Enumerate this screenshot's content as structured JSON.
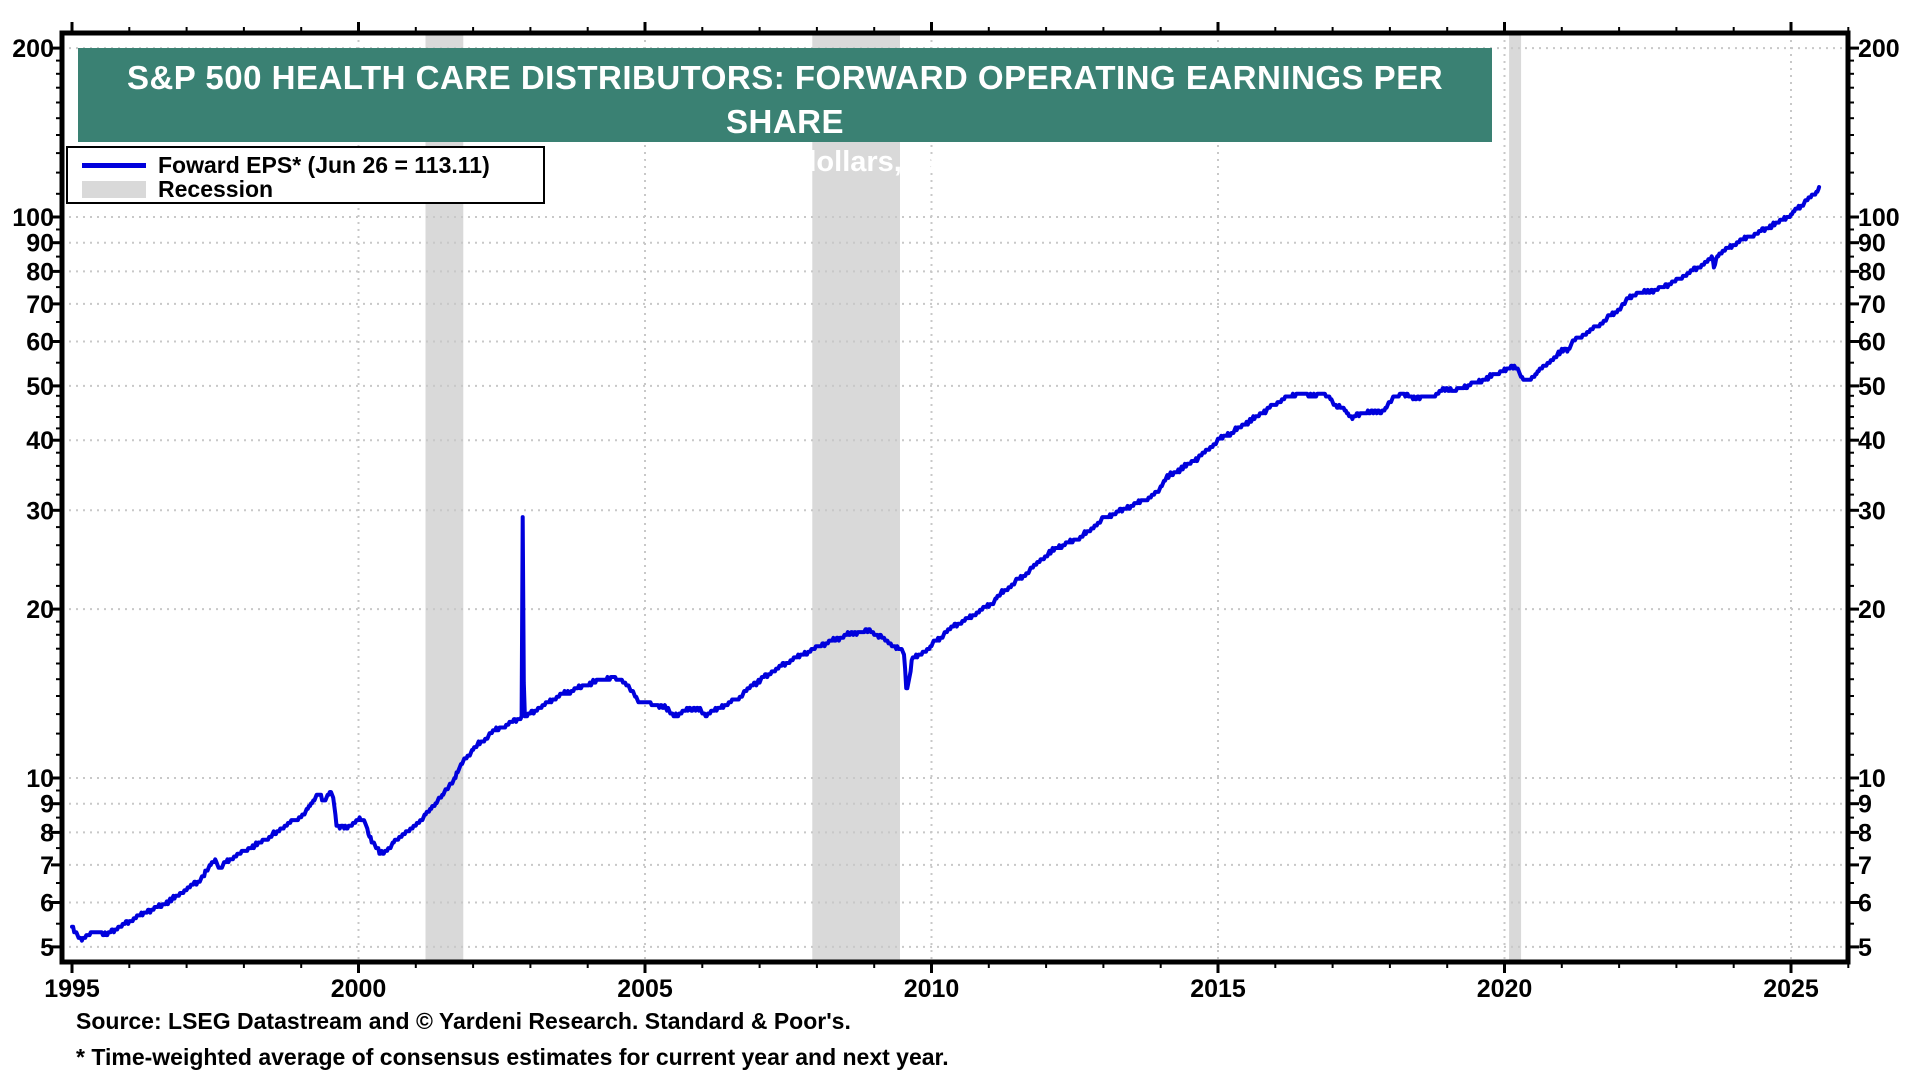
{
  "banner": {
    "title": "S&P 500 HEALTH CARE DISTRIBUTORS: FORWARD OPERATING EARNINGS PER SHARE",
    "subtitle": "(analysts’ average forecasts, dollars, ratio scale, weekly)",
    "bg": "#3A8173"
  },
  "legend": {
    "series_label": "Foward EPS* (Jun 26 = 113.11)",
    "recession_label": "Recession",
    "line_color": "#0000DC",
    "recession_color": "#D9D9D9",
    "gridline_color": "#C8C8C8"
  },
  "footer": {
    "source": "Source: LSEG Datastream and © Yardeni Research. Standard & Poor's.",
    "footnote": "* Time-weighted average of consensus estimates for current year and next year."
  },
  "chart_data": {
    "type": "line",
    "scale": "log",
    "title": "S&P 500 Health Care Distributors: Forward Operating Earnings Per Share",
    "subtitle": "analysts' average forecasts, dollars, ratio scale, weekly",
    "series_name": "Forward EPS",
    "last_point": {
      "label": "Jun 26",
      "value": 113.11
    },
    "x_ticks": [
      1995,
      2000,
      2005,
      2010,
      2015,
      2020,
      2025
    ],
    "x_range": [
      1995,
      2026
    ],
    "y_ticks": [
      5,
      6,
      7,
      8,
      9,
      10,
      20,
      30,
      40,
      50,
      60,
      70,
      80,
      90,
      100,
      200
    ],
    "y_minor_ticks": [
      5.5,
      6.5,
      7.5,
      8.5,
      9.5,
      11,
      12,
      13,
      14,
      15,
      16,
      17,
      18,
      19,
      22,
      24,
      26,
      28,
      32,
      34,
      36,
      38,
      42,
      44,
      46,
      48,
      55,
      65,
      75,
      85,
      95,
      110,
      120,
      130,
      140,
      150,
      160,
      170,
      180,
      190
    ],
    "y_range": [
      4.7,
      213
    ],
    "grid": "dotted",
    "legend_position": "top-left",
    "recession_bands": [
      [
        2001.17,
        2001.83
      ],
      [
        2007.92,
        2009.45
      ],
      [
        2020.08,
        2020.29
      ]
    ],
    "anchors": [
      [
        1995.0,
        5.4
      ],
      [
        1995.08,
        5.27
      ],
      [
        1995.17,
        5.15
      ],
      [
        1995.3,
        5.27
      ],
      [
        1995.45,
        5.33
      ],
      [
        1995.58,
        5.25
      ],
      [
        1995.72,
        5.36
      ],
      [
        1995.86,
        5.46
      ],
      [
        1996.0,
        5.55
      ],
      [
        1996.3,
        5.78
      ],
      [
        1996.6,
        5.95
      ],
      [
        1996.85,
        6.18
      ],
      [
        1997.0,
        6.35
      ],
      [
        1997.25,
        6.6
      ],
      [
        1997.42,
        7.0
      ],
      [
        1997.5,
        7.15
      ],
      [
        1997.58,
        6.88
      ],
      [
        1997.7,
        7.1
      ],
      [
        1998.0,
        7.4
      ],
      [
        1998.4,
        7.8
      ],
      [
        1998.8,
        8.3
      ],
      [
        1999.0,
        8.55
      ],
      [
        1999.15,
        8.9
      ],
      [
        1999.31,
        9.45
      ],
      [
        1999.4,
        9.05
      ],
      [
        1999.5,
        9.42
      ],
      [
        1999.56,
        9.25
      ],
      [
        1999.62,
        8.2
      ],
      [
        1999.8,
        8.15
      ],
      [
        2000.0,
        8.45
      ],
      [
        2000.1,
        8.4
      ],
      [
        2000.22,
        7.75
      ],
      [
        2000.38,
        7.35
      ],
      [
        2000.52,
        7.45
      ],
      [
        2000.68,
        7.8
      ],
      [
        2000.88,
        8.05
      ],
      [
        2001.1,
        8.45
      ],
      [
        2001.3,
        8.9
      ],
      [
        2001.5,
        9.4
      ],
      [
        2001.65,
        9.9
      ],
      [
        2001.8,
        10.6
      ],
      [
        2001.95,
        11.1
      ],
      [
        2002.1,
        11.5
      ],
      [
        2002.3,
        12.0
      ],
      [
        2002.55,
        12.4
      ],
      [
        2002.8,
        12.75
      ],
      [
        2002.848,
        12.8
      ],
      [
        2002.856,
        29.3
      ],
      [
        2002.878,
        29.3
      ],
      [
        2002.886,
        12.85
      ],
      [
        2003.0,
        13.05
      ],
      [
        2003.3,
        13.65
      ],
      [
        2003.6,
        14.15
      ],
      [
        2003.9,
        14.55
      ],
      [
        2004.2,
        14.95
      ],
      [
        2004.45,
        15.1
      ],
      [
        2004.6,
        14.95
      ],
      [
        2004.75,
        14.35
      ],
      [
        2004.9,
        13.7
      ],
      [
        2005.1,
        13.6
      ],
      [
        2005.35,
        13.35
      ],
      [
        2005.55,
        12.9
      ],
      [
        2005.75,
        13.3
      ],
      [
        2005.95,
        13.25
      ],
      [
        2006.08,
        12.95
      ],
      [
        2006.3,
        13.35
      ],
      [
        2006.6,
        13.85
      ],
      [
        2006.9,
        14.7
      ],
      [
        2007.2,
        15.4
      ],
      [
        2007.55,
        16.2
      ],
      [
        2007.9,
        16.9
      ],
      [
        2008.2,
        17.5
      ],
      [
        2008.6,
        18.1
      ],
      [
        2008.9,
        18.3
      ],
      [
        2009.1,
        17.9
      ],
      [
        2009.35,
        17.2
      ],
      [
        2009.52,
        16.7
      ],
      [
        2009.56,
        14.3
      ],
      [
        2009.61,
        15.0
      ],
      [
        2009.66,
        16.3
      ],
      [
        2009.85,
        16.7
      ],
      [
        2010.1,
        17.6
      ],
      [
        2010.4,
        18.7
      ],
      [
        2010.7,
        19.4
      ],
      [
        2011.0,
        20.3
      ],
      [
        2011.3,
        21.7
      ],
      [
        2011.6,
        22.9
      ],
      [
        2011.9,
        24.5
      ],
      [
        2012.1,
        25.4
      ],
      [
        2012.3,
        26.1
      ],
      [
        2012.55,
        26.7
      ],
      [
        2012.8,
        27.8
      ],
      [
        2013.0,
        29.0
      ],
      [
        2013.4,
        30.3
      ],
      [
        2013.8,
        31.6
      ],
      [
        2013.95,
        32.4
      ],
      [
        2014.1,
        34.3
      ],
      [
        2014.4,
        35.8
      ],
      [
        2014.7,
        37.5
      ],
      [
        2015.0,
        40.0
      ],
      [
        2015.35,
        42.0
      ],
      [
        2015.7,
        44.3
      ],
      [
        2016.0,
        46.3
      ],
      [
        2016.2,
        47.7
      ],
      [
        2016.4,
        48.5
      ],
      [
        2016.6,
        48.1
      ],
      [
        2016.8,
        48.4
      ],
      [
        2016.95,
        47.9
      ],
      [
        2017.05,
        46.0
      ],
      [
        2017.2,
        45.5
      ],
      [
        2017.35,
        43.8
      ],
      [
        2017.5,
        44.7
      ],
      [
        2017.7,
        44.9
      ],
      [
        2017.9,
        45.1
      ],
      [
        2018.05,
        47.6
      ],
      [
        2018.2,
        48.4
      ],
      [
        2018.4,
        47.6
      ],
      [
        2018.6,
        47.7
      ],
      [
        2018.8,
        48.2
      ],
      [
        2019.0,
        49.6
      ],
      [
        2019.12,
        48.8
      ],
      [
        2019.3,
        49.9
      ],
      [
        2019.55,
        50.8
      ],
      [
        2019.8,
        52.2
      ],
      [
        2020.0,
        53.3
      ],
      [
        2020.15,
        54.2
      ],
      [
        2020.24,
        53.6
      ],
      [
        2020.3,
        51.4
      ],
      [
        2020.38,
        50.9
      ],
      [
        2020.5,
        52.0
      ],
      [
        2020.7,
        54.3
      ],
      [
        2020.9,
        56.5
      ],
      [
        2021.05,
        58.2
      ],
      [
        2021.12,
        58.0
      ],
      [
        2021.18,
        60.0
      ],
      [
        2021.4,
        61.8
      ],
      [
        2021.7,
        64.8
      ],
      [
        2022.0,
        68.5
      ],
      [
        2022.15,
        71.5
      ],
      [
        2022.3,
        73.0
      ],
      [
        2022.5,
        73.6
      ],
      [
        2022.7,
        74.5
      ],
      [
        2023.0,
        77.0
      ],
      [
        2023.3,
        80.3
      ],
      [
        2023.55,
        83.5
      ],
      [
        2023.62,
        85.0
      ],
      [
        2023.66,
        80.8
      ],
      [
        2023.71,
        85.5
      ],
      [
        2023.9,
        87.8
      ],
      [
        2024.1,
        90.5
      ],
      [
        2024.4,
        93.5
      ],
      [
        2024.7,
        97.0
      ],
      [
        2025.0,
        101.1
      ],
      [
        2025.2,
        105.3
      ],
      [
        2025.35,
        108.8
      ],
      [
        2025.44,
        110.6
      ],
      [
        2025.49,
        113.11
      ]
    ]
  }
}
